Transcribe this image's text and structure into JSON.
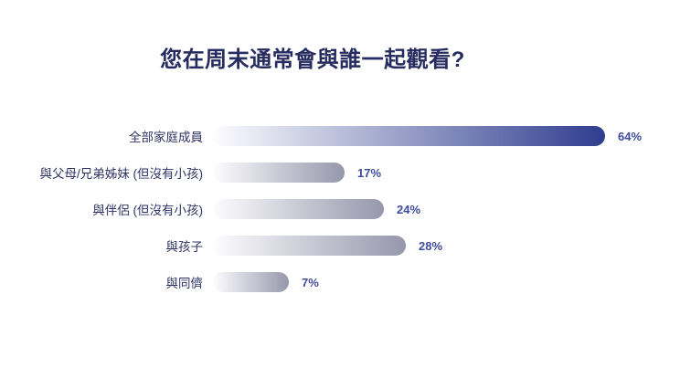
{
  "page": {
    "background": "#ffffff"
  },
  "chart_data": {
    "type": "bar",
    "orientation": "horizontal",
    "title": "您在周末通常會與誰一起觀看?",
    "categories": [
      "全部家庭成員",
      "與父母/兄弟姊妹 (但沒有小孩)",
      "與伴侶 (但沒有小孩)",
      "與孩子",
      "與同儕"
    ],
    "values": [
      64,
      17,
      24,
      28,
      7
    ],
    "value_labels": [
      "64%",
      "17%",
      "24%",
      "28%",
      "7%"
    ],
    "unit": "%",
    "xlabel": "",
    "ylabel": "",
    "xlim": [
      0,
      70
    ],
    "grid": false,
    "legend": "none",
    "highlight_index": 0,
    "colors": {
      "title_text": "#262c5f",
      "category_text": "#2e3366",
      "value_text": "#3e4b9e",
      "bar_start": "#fdfdff",
      "bar_highlight_end": "#2f3d8e",
      "bar_normal_end": "#9697ac"
    }
  }
}
